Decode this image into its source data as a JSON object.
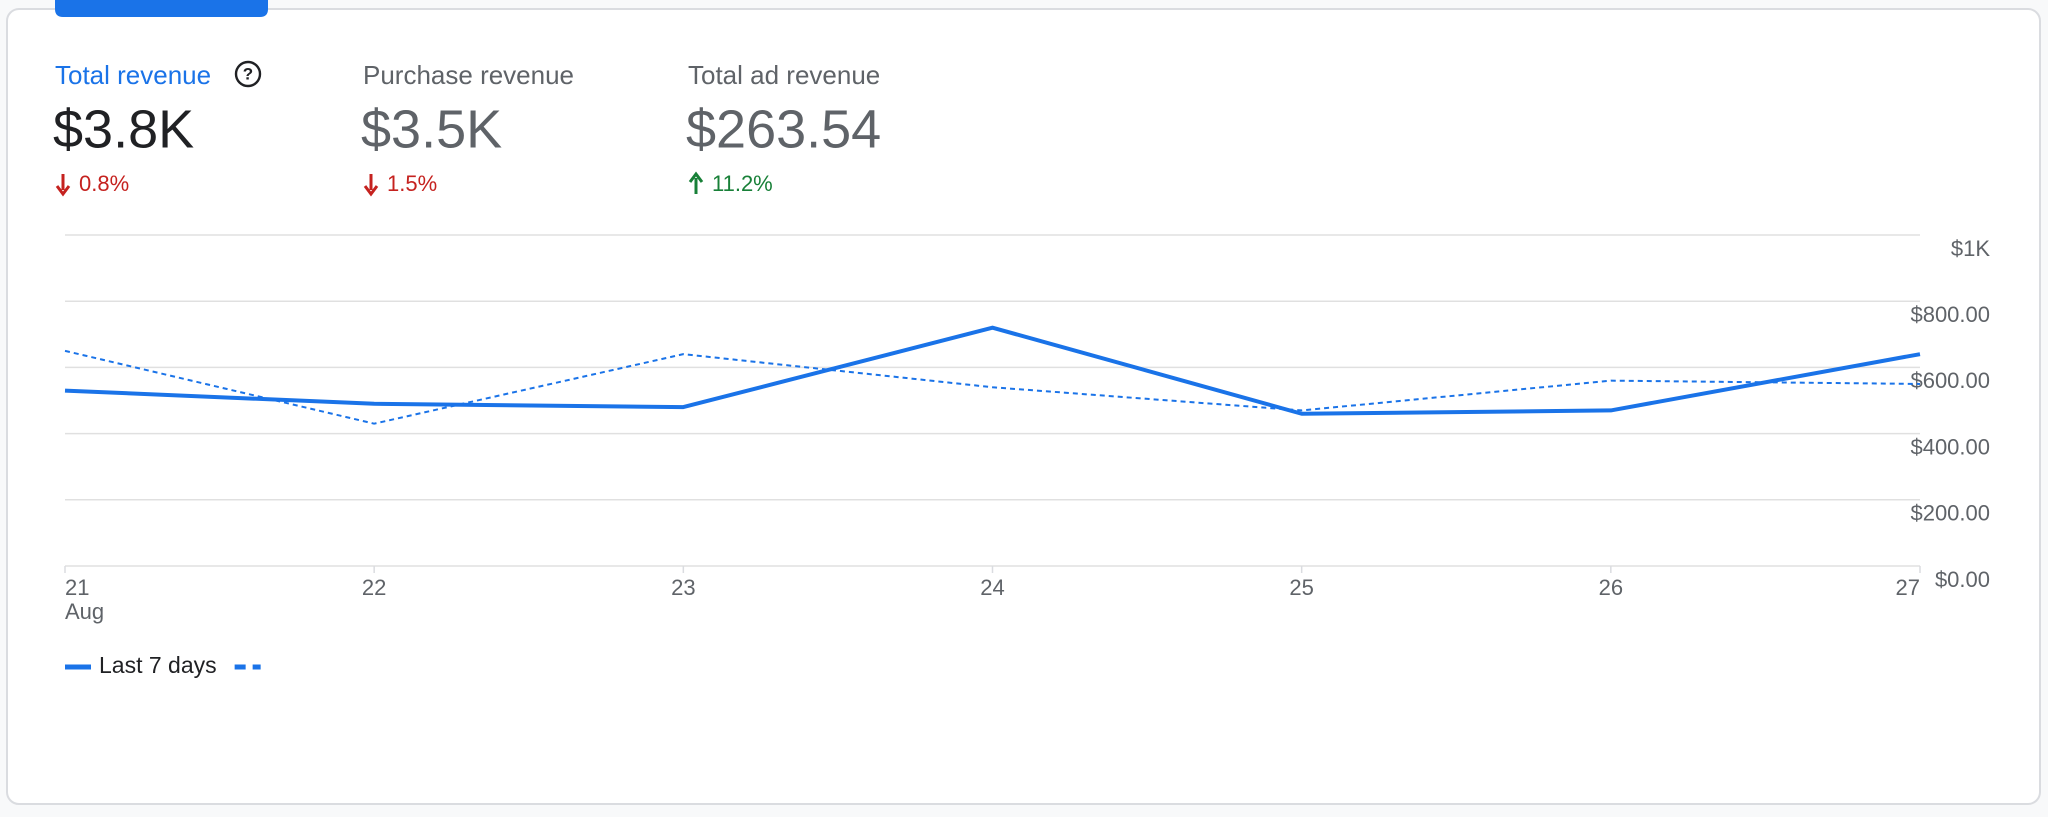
{
  "tabs": [
    {
      "label": "Total revenue",
      "value": "$3.8K",
      "change": "0.8%",
      "trend": "down",
      "active": true
    },
    {
      "label": "Purchase revenue",
      "value": "$3.5K",
      "change": "1.5%",
      "trend": "down"
    },
    {
      "label": "Total ad revenue",
      "value": "$263.54",
      "change": "11.2%",
      "trend": "up"
    }
  ],
  "chart_data": {
    "type": "line",
    "categories": [
      "21",
      "22",
      "23",
      "24",
      "25",
      "26",
      "27"
    ],
    "x_sublabel": "Aug",
    "series": [
      {
        "name": "Last 7 days",
        "color": "#1a73e8",
        "values": [
          530,
          490,
          480,
          720,
          460,
          470,
          640
        ]
      },
      {
        "color": "#1a73e8",
        "dash": true,
        "values": [
          650,
          430,
          640,
          540,
          470,
          560,
          550
        ]
      }
    ],
    "ylim": [
      0,
      1000
    ],
    "yticks": [
      {
        "value": 0,
        "label": "$0.00"
      },
      {
        "value": 200,
        "label": "$200.00"
      },
      {
        "value": 400,
        "label": "$400.00"
      },
      {
        "value": 600,
        "label": "$600.00"
      },
      {
        "value": 800,
        "label": "$800.00"
      },
      {
        "value": 1000,
        "label": "$1K"
      }
    ],
    "grid": true
  }
}
